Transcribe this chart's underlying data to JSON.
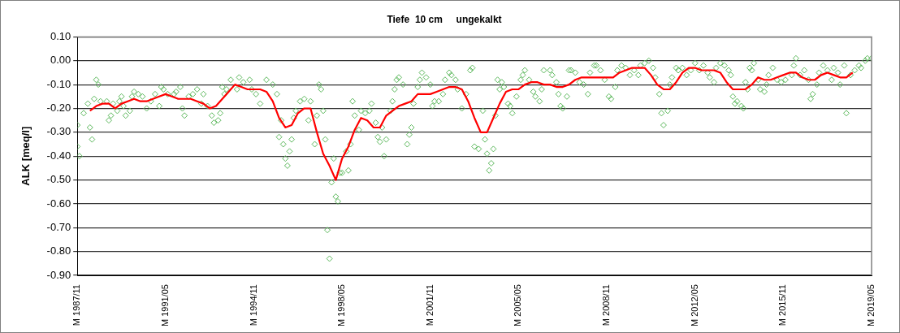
{
  "chart_data": {
    "type": "scatter",
    "title": "Tiefe  10 cm     ungekalkt",
    "ylabel": "ALK [meq/l]",
    "xlim": [
      "1987-11",
      "2019-05"
    ],
    "xticks": [
      {
        "value": "1987-11",
        "label": "M 1987/11"
      },
      {
        "value": "1991-05",
        "label": "M 1991/05"
      },
      {
        "value": "1994-11",
        "label": "M 1994/11"
      },
      {
        "value": "1998-05",
        "label": "M 1998/05"
      },
      {
        "value": "2001-11",
        "label": "M 2001/11"
      },
      {
        "value": "2005-05",
        "label": "M 2005/05"
      },
      {
        "value": "2008-11",
        "label": "M 2008/11"
      },
      {
        "value": "2012-05",
        "label": "M 2012/05"
      },
      {
        "value": "2015-11",
        "label": "M 2015/11"
      },
      {
        "value": "2019-05",
        "label": "M 2019/05"
      }
    ],
    "ylim": [
      -0.9,
      0.1
    ],
    "yticks": [
      {
        "value": 0.1,
        "label": "0.10"
      },
      {
        "value": 0,
        "label": "0.00"
      },
      {
        "value": -0.1,
        "label": "-0.10"
      },
      {
        "value": -0.2,
        "label": "-0.20"
      },
      {
        "value": -0.3,
        "label": "-0.30"
      },
      {
        "value": -0.4,
        "label": "-0.40"
      },
      {
        "value": -0.5,
        "label": "-0.50"
      },
      {
        "value": -0.6,
        "label": "-0.60"
      },
      {
        "value": -0.7,
        "label": "-0.70"
      },
      {
        "value": -0.8,
        "label": "-0.80"
      },
      {
        "value": -0.9,
        "label": "-0.90"
      }
    ],
    "grid": "y",
    "legend": false,
    "series": [
      {
        "type": "scatter",
        "color": "#5cb85c",
        "marker": "diamond",
        "x": [
          "1987-11",
          "1987-12",
          "1987-11",
          "1988-02",
          "1988-04",
          "1988-05",
          "1988-06",
          "1988-07",
          "1988-08",
          "1988-09",
          "1988-10",
          "1989-01",
          "1989-02",
          "1989-03",
          "1989-04",
          "1989-06",
          "1989-07",
          "1989-08",
          "1989-09",
          "1989-10",
          "1989-12",
          "1990-01",
          "1990-02",
          "1990-04",
          "1990-06",
          "1990-08",
          "1990-10",
          "1990-12",
          "1991-02",
          "1991-03",
          "1991-04",
          "1991-06",
          "1991-09",
          "1991-10",
          "1991-12",
          "1992-01",
          "1992-02",
          "1992-04",
          "1992-06",
          "1992-08",
          "1992-10",
          "1992-11",
          "1993-01",
          "1993-03",
          "1993-04",
          "1993-06",
          "1993-07",
          "1993-08",
          "1993-09",
          "1993-10",
          "1993-12",
          "1994-03",
          "1994-04",
          "1994-06",
          "1994-09",
          "1994-10",
          "1994-12",
          "1995-02",
          "1995-05",
          "1995-08",
          "1995-10",
          "1995-11",
          "1995-12",
          "1996-01",
          "1996-02",
          "1996-03",
          "1996-04",
          "1996-05",
          "1996-06",
          "1996-07",
          "1996-09",
          "1996-11",
          "1997-01",
          "1997-02",
          "1997-04",
          "1997-05",
          "1997-06",
          "1997-07",
          "1997-08",
          "1997-09",
          "1997-10",
          "1997-11",
          "1997-12",
          "1998-01",
          "1998-02",
          "1998-03",
          "1998-04",
          "1998-05",
          "1998-07",
          "1998-08",
          "1998-09",
          "1998-10",
          "1998-11",
          "1999-01",
          "1999-02",
          "1999-04",
          "1999-06",
          "1999-07",
          "1999-09",
          "1999-10",
          "1999-11",
          "1999-12",
          "2000-01",
          "2000-02",
          "2000-04",
          "2000-05",
          "2000-06",
          "2000-07",
          "2000-08",
          "2000-10",
          "2000-12",
          "2001-01",
          "2001-02",
          "2001-03",
          "2001-05",
          "2001-06",
          "2001-07",
          "2001-09",
          "2001-11",
          "2001-12",
          "2002-01",
          "2002-03",
          "2002-05",
          "2002-06",
          "2002-08",
          "2002-09",
          "2002-11",
          "2002-12",
          "2003-02",
          "2003-04",
          "2003-06",
          "2003-07",
          "2003-08",
          "2003-10",
          "2003-12",
          "2004-01",
          "2004-02",
          "2004-03",
          "2004-04",
          "2004-05",
          "2004-06",
          "2004-07",
          "2004-08",
          "2004-09",
          "2004-10",
          "2004-12",
          "2005-01",
          "2005-02",
          "2005-04",
          "2005-06",
          "2005-07",
          "2005-08",
          "2005-10",
          "2005-12",
          "2006-01",
          "2006-03",
          "2006-04",
          "2006-05",
          "2006-08",
          "2006-09",
          "2006-11",
          "2006-12",
          "2007-01",
          "2007-02",
          "2007-04",
          "2007-05",
          "2007-06",
          "2007-08",
          "2007-10",
          "2007-12",
          "2008-02",
          "2008-03",
          "2008-05",
          "2008-06",
          "2008-08",
          "2008-10",
          "2008-12",
          "2009-01",
          "2009-03",
          "2009-04",
          "2009-06",
          "2009-08",
          "2009-10",
          "2009-12",
          "2010-02",
          "2010-03",
          "2010-05",
          "2010-07",
          "2010-09",
          "2010-10",
          "2010-12",
          "2011-01",
          "2011-02",
          "2011-04",
          "2011-06",
          "2011-05",
          "2011-08",
          "2011-09",
          "2011-11",
          "2012-01",
          "2012-03",
          "2012-05",
          "2012-07",
          "2012-09",
          "2012-11",
          "2012-12",
          "2013-02",
          "2013-03",
          "2013-05",
          "2013-07",
          "2013-09",
          "2013-10",
          "2013-11",
          "2013-12",
          "2014-01",
          "2014-03",
          "2014-04",
          "2014-05",
          "2014-06",
          "2014-07",
          "2014-08",
          "2014-09",
          "2014-11",
          "2014-12",
          "2015-02",
          "2015-03",
          "2015-04",
          "2015-06",
          "2015-08",
          "2015-10",
          "2015-12",
          "2016-03",
          "2016-04",
          "2016-05",
          "2016-07",
          "2016-09",
          "2016-11",
          "2016-12",
          "2017-01",
          "2017-03",
          "2017-04",
          "2017-06",
          "2017-08",
          "2017-10",
          "2017-11",
          "2018-01",
          "2018-02",
          "2018-04",
          "2018-05",
          "2018-07",
          "2018-09",
          "2018-11",
          "2018-12",
          "2019-02",
          "2019-03",
          "2019-05"
        ],
        "values": [
          -0.36,
          -0.4,
          -0.27,
          -0.22,
          -0.18,
          -0.28,
          -0.33,
          -0.16,
          -0.08,
          -0.1,
          -0.17,
          -0.17,
          -0.25,
          -0.23,
          -0.18,
          -0.21,
          -0.17,
          -0.15,
          -0.19,
          -0.23,
          -0.21,
          -0.15,
          -0.13,
          -0.14,
          -0.15,
          -0.2,
          -0.17,
          -0.14,
          -0.19,
          -0.11,
          -0.12,
          -0.14,
          -0.14,
          -0.13,
          -0.11,
          -0.2,
          -0.23,
          -0.15,
          -0.14,
          -0.12,
          -0.18,
          -0.14,
          -0.19,
          -0.23,
          -0.26,
          -0.25,
          -0.22,
          -0.11,
          -0.14,
          -0.12,
          -0.08,
          -0.12,
          -0.07,
          -0.09,
          -0.08,
          -0.12,
          -0.14,
          -0.18,
          -0.08,
          -0.1,
          -0.14,
          -0.32,
          -0.25,
          -0.35,
          -0.41,
          -0.44,
          -0.38,
          -0.33,
          -0.24,
          -0.21,
          -0.17,
          -0.16,
          -0.25,
          -0.17,
          -0.35,
          -0.23,
          -0.1,
          -0.12,
          -0.21,
          -0.33,
          -0.71,
          -0.83,
          -0.51,
          -0.41,
          -0.57,
          -0.59,
          -0.47,
          -0.47,
          -0.38,
          -0.46,
          -0.35,
          -0.17,
          -0.23,
          -0.29,
          -0.21,
          -0.22,
          -0.21,
          -0.18,
          -0.26,
          -0.32,
          -0.34,
          -0.28,
          -0.4,
          -0.33,
          -0.21,
          -0.17,
          -0.12,
          -0.08,
          -0.07,
          -0.1,
          -0.35,
          -0.31,
          -0.28,
          -0.18,
          -0.11,
          -0.08,
          -0.05,
          -0.07,
          -0.1,
          -0.19,
          -0.17,
          -0.17,
          -0.14,
          -0.08,
          -0.05,
          -0.06,
          -0.08,
          -0.12,
          -0.2,
          -0.14,
          -0.04,
          -0.03,
          -0.36,
          -0.37,
          -0.21,
          -0.33,
          -0.39,
          -0.46,
          -0.43,
          -0.37,
          -0.23,
          -0.08,
          -0.12,
          -0.09,
          -0.11,
          -0.18,
          -0.19,
          -0.22,
          -0.15,
          -0.08,
          -0.06,
          -0.04,
          -0.08,
          -0.13,
          -0.15,
          -0.17,
          -0.12,
          -0.04,
          -0.04,
          -0.06,
          -0.09,
          -0.14,
          -0.19,
          -0.2,
          -0.15,
          -0.04,
          -0.04,
          -0.05,
          -0.09,
          -0.1,
          -0.14,
          -0.05,
          -0.02,
          -0.02,
          -0.04,
          -0.08,
          -0.15,
          -0.16,
          -0.11,
          -0.04,
          -0.02,
          -0.03,
          -0.06,
          -0.04,
          -0.06,
          -0.02,
          -0.01,
          0,
          -0.03,
          -0.07,
          -0.14,
          -0.22,
          -0.27,
          -0.21,
          -0.07,
          -0.1,
          -0.03,
          -0.04,
          -0.03,
          -0.06,
          -0.04,
          -0.01,
          -0.04,
          -0.02,
          -0.05,
          -0.07,
          -0.09,
          -0.03,
          -0.01,
          -0.02,
          -0.04,
          -0.06,
          -0.15,
          -0.18,
          -0.17,
          -0.19,
          -0.2,
          -0.09,
          -0.12,
          -0.03,
          -0.04,
          -0.01,
          -0.08,
          -0.12,
          -0.13,
          -0.1,
          -0.06,
          -0.03,
          -0.08,
          -0.09,
          -0.08,
          -0.06,
          -0.02,
          0.01,
          -0.06,
          -0.04,
          -0.08,
          -0.16,
          -0.14,
          -0.1,
          -0.05,
          -0.02,
          -0.04,
          -0.08,
          -0.03,
          -0.05,
          -0.1,
          -0.02,
          -0.22,
          -0.06,
          -0.04,
          -0.02,
          -0.03,
          0,
          0.01,
          0.01
        ]
      },
      {
        "type": "line",
        "color": "#ff0000",
        "marker": "none",
        "line_style": "solid",
        "x": [
          "1988-05",
          "1988-08",
          "1988-11",
          "1989-02",
          "1989-05",
          "1989-08",
          "1989-11",
          "1990-02",
          "1990-05",
          "1990-08",
          "1990-11",
          "1991-02",
          "1991-05",
          "1991-08",
          "1991-11",
          "1992-02",
          "1992-05",
          "1992-08",
          "1992-11",
          "1993-02",
          "1993-05",
          "1993-08",
          "1993-11",
          "1994-02",
          "1994-05",
          "1994-08",
          "1994-11",
          "1995-02",
          "1995-05",
          "1995-08",
          "1995-11",
          "1996-02",
          "1996-05",
          "1996-08",
          "1996-11",
          "1997-02",
          "1997-05",
          "1997-08",
          "1997-11",
          "1998-02",
          "1998-05",
          "1998-08",
          "1998-11",
          "1999-02",
          "1999-05",
          "1999-08",
          "1999-11",
          "2000-02",
          "2000-05",
          "2000-08",
          "2000-11",
          "2001-02",
          "2001-05",
          "2001-08",
          "2001-11",
          "2002-02",
          "2002-05",
          "2002-08",
          "2002-11",
          "2003-02",
          "2003-05",
          "2003-08",
          "2003-11",
          "2004-02",
          "2004-05",
          "2004-08",
          "2004-11",
          "2005-02",
          "2005-05",
          "2005-08",
          "2005-11",
          "2006-02",
          "2006-05",
          "2006-08",
          "2006-11",
          "2007-02",
          "2007-05",
          "2007-08",
          "2007-11",
          "2008-02",
          "2008-05",
          "2008-08",
          "2008-11",
          "2009-02",
          "2009-05",
          "2009-08",
          "2009-11",
          "2010-02",
          "2010-05",
          "2010-08",
          "2010-11",
          "2011-02",
          "2011-05",
          "2011-08",
          "2011-11",
          "2012-02",
          "2012-05",
          "2012-08",
          "2012-11",
          "2013-02",
          "2013-05",
          "2013-08",
          "2013-11",
          "2014-02",
          "2014-05",
          "2014-08",
          "2014-11",
          "2015-02",
          "2015-05",
          "2015-08",
          "2015-11",
          "2016-02",
          "2016-05",
          "2016-08",
          "2016-11",
          "2017-02",
          "2017-05",
          "2017-08",
          "2017-11",
          "2018-02",
          "2018-05",
          "2018-08"
        ],
        "values": [
          -0.21,
          -0.19,
          -0.18,
          -0.18,
          -0.2,
          -0.18,
          -0.17,
          -0.16,
          -0.17,
          -0.17,
          -0.16,
          -0.15,
          -0.14,
          -0.15,
          -0.16,
          -0.16,
          -0.16,
          -0.17,
          -0.18,
          -0.2,
          -0.19,
          -0.16,
          -0.13,
          -0.1,
          -0.11,
          -0.12,
          -0.12,
          -0.12,
          -0.13,
          -0.17,
          -0.24,
          -0.28,
          -0.27,
          -0.22,
          -0.2,
          -0.2,
          -0.3,
          -0.39,
          -0.44,
          -0.5,
          -0.41,
          -0.36,
          -0.29,
          -0.24,
          -0.25,
          -0.28,
          -0.28,
          -0.23,
          -0.21,
          -0.19,
          -0.18,
          -0.17,
          -0.14,
          -0.14,
          -0.14,
          -0.13,
          -0.12,
          -0.11,
          -0.11,
          -0.12,
          -0.17,
          -0.24,
          -0.3,
          -0.3,
          -0.24,
          -0.18,
          -0.13,
          -0.12,
          -0.12,
          -0.1,
          -0.09,
          -0.09,
          -0.1,
          -0.1,
          -0.11,
          -0.11,
          -0.1,
          -0.08,
          -0.07,
          -0.07,
          -0.07,
          -0.07,
          -0.07,
          -0.07,
          -0.05,
          -0.04,
          -0.03,
          -0.03,
          -0.03,
          -0.06,
          -0.1,
          -0.12,
          -0.12,
          -0.09,
          -0.05,
          -0.03,
          -0.03,
          -0.04,
          -0.04,
          -0.04,
          -0.05,
          -0.09,
          -0.12,
          -0.12,
          -0.12,
          -0.1,
          -0.07,
          -0.08,
          -0.08,
          -0.07,
          -0.06,
          -0.05,
          -0.05,
          -0.07,
          -0.08,
          -0.08,
          -0.06,
          -0.05,
          -0.06,
          -0.07,
          -0.07,
          -0.05
        ]
      }
    ]
  }
}
